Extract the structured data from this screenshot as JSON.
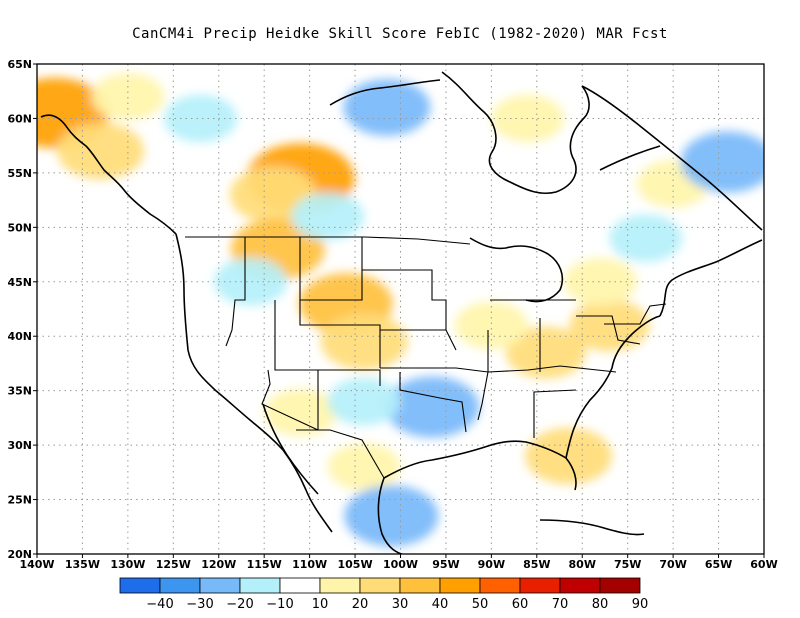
{
  "title": "CanCM4i Precip Heidke Skill Score FebIC (1982-2020) MAR Fcst",
  "map": {
    "lon_range": [
      -140,
      -60
    ],
    "lat_range": [
      20,
      65
    ],
    "lon_ticks": [
      {
        "value": -140,
        "label": "140W"
      },
      {
        "value": -135,
        "label": "135W"
      },
      {
        "value": -130,
        "label": "130W"
      },
      {
        "value": -125,
        "label": "125W"
      },
      {
        "value": -120,
        "label": "120W"
      },
      {
        "value": -115,
        "label": "115W"
      },
      {
        "value": -110,
        "label": "110W"
      },
      {
        "value": -105,
        "label": "105W"
      },
      {
        "value": -100,
        "label": "100W"
      },
      {
        "value": -95,
        "label": "95W"
      },
      {
        "value": -90,
        "label": "90W"
      },
      {
        "value": -85,
        "label": "85W"
      },
      {
        "value": -80,
        "label": "80W"
      },
      {
        "value": -75,
        "label": "75W"
      },
      {
        "value": -70,
        "label": "70W"
      },
      {
        "value": -65,
        "label": "65W"
      },
      {
        "value": -60,
        "label": "60W"
      }
    ],
    "lat_ticks": [
      {
        "value": 20,
        "label": "20N"
      },
      {
        "value": 25,
        "label": "25N"
      },
      {
        "value": 30,
        "label": "30N"
      },
      {
        "value": 35,
        "label": "35N"
      },
      {
        "value": 40,
        "label": "40N"
      },
      {
        "value": 45,
        "label": "45N"
      },
      {
        "value": 50,
        "label": "50N"
      },
      {
        "value": 55,
        "label": "55N"
      },
      {
        "value": 60,
        "label": "60N"
      },
      {
        "value": 65,
        "label": "65N"
      }
    ],
    "grid": true,
    "regions": [
      {
        "name": "Alaska panhandle",
        "lon": -138,
        "lat": 60.5,
        "value": 45
      },
      {
        "name": "Gulf of Alaska coast",
        "lon": -133,
        "lat": 57,
        "value": 25
      },
      {
        "name": "Central Canada max",
        "lon": -111,
        "lat": 54.5,
        "value": 45
      },
      {
        "name": "Central Canada",
        "lon": -114,
        "lat": 53,
        "value": 25
      },
      {
        "name": "Northern Rockies",
        "lon": -113.5,
        "lat": 48,
        "value": 30
      },
      {
        "name": "Wyoming/Colorado",
        "lon": -106,
        "lat": 43,
        "value": 30
      },
      {
        "name": "Colorado/Kansas",
        "lon": -104,
        "lat": 39.5,
        "value": 25
      },
      {
        "name": "Ohio Valley",
        "lon": -84,
        "lat": 38.5,
        "value": 20
      },
      {
        "name": "Mid-Atlantic",
        "lon": -77,
        "lat": 41,
        "value": 20
      },
      {
        "name": "Eastern Canada",
        "lon": -78,
        "lat": 45,
        "value": 15
      },
      {
        "name": "Labrador",
        "lon": -70,
        "lat": 54,
        "value": 15
      },
      {
        "name": "Hudson Bay",
        "lon": -86,
        "lat": 60,
        "value": 15
      },
      {
        "name": "Great Lakes",
        "lon": -90,
        "lat": 41,
        "value": 15
      },
      {
        "name": "Arizona",
        "lon": -111,
        "lat": 33,
        "value": 15
      },
      {
        "name": "Mexico plateau",
        "lon": -104,
        "lat": 28,
        "value": 15
      },
      {
        "name": "Florida",
        "lon": -81.5,
        "lat": 29,
        "value": 25
      },
      {
        "name": "Alaska interior",
        "lon": -130,
        "lat": 62,
        "value": 15
      },
      {
        "name": "Central Mexico",
        "lon": -101,
        "lat": 23.5,
        "value": -30
      },
      {
        "name": "Texas/Oklahoma",
        "lon": -96.5,
        "lat": 33.5,
        "value": -30
      },
      {
        "name": "Labrador coast",
        "lon": -64,
        "lat": 56,
        "value": -30
      },
      {
        "name": "Nunavut",
        "lon": -101.5,
        "lat": 61,
        "value": -25
      },
      {
        "name": "NW Territories",
        "lon": -122,
        "lat": 60,
        "value": -15
      },
      {
        "name": "Idaho/Nevada",
        "lon": -116.5,
        "lat": 45,
        "value": -15
      },
      {
        "name": "New Mexico",
        "lon": -104,
        "lat": 34,
        "value": -15
      },
      {
        "name": "Quebec",
        "lon": -73,
        "lat": 49,
        "value": -15
      },
      {
        "name": "Saskatchewan",
        "lon": -108,
        "lat": 51,
        "value": -15
      }
    ]
  },
  "colorbar": {
    "colors": [
      "#1e6eeb",
      "#3c96f0",
      "#78b9fa",
      "#b4f0fa",
      "#ffffff",
      "#fff5aa",
      "#ffdc78",
      "#ffc03c",
      "#ffa000",
      "#ff6000",
      "#e82000",
      "#c00000",
      "#a50000"
    ],
    "labels": [
      "-40",
      "-30",
      "-20",
      "-10",
      "10",
      "20",
      "30",
      "40",
      "50",
      "60",
      "70",
      "80",
      "90"
    ]
  }
}
